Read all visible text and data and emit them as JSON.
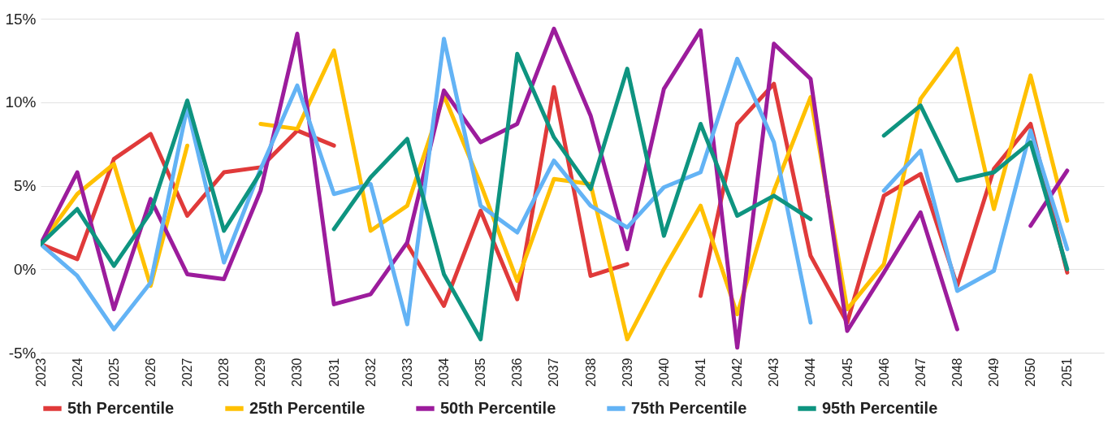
{
  "chart_data": {
    "type": "line",
    "categories": [
      "2023",
      "2024",
      "2025",
      "2026",
      "2027",
      "2028",
      "2029",
      "2030",
      "2031",
      "2032",
      "2033",
      "2034",
      "2035",
      "2036",
      "2037",
      "2038",
      "2039",
      "2040",
      "2041",
      "2042",
      "2043",
      "2044",
      "2045",
      "2046",
      "2047",
      "2048",
      "2049",
      "2050",
      "2051"
    ],
    "series": [
      {
        "name": "5th Percentile",
        "color": "#e03a3a",
        "values": [
          1.5,
          0.6,
          6.6,
          8.1,
          3.2,
          5.8,
          6.1,
          8.3,
          7.4,
          null,
          1.5,
          -2.2,
          3.5,
          -1.8,
          10.9,
          -0.4,
          0.3,
          null,
          -1.6,
          8.7,
          11.1,
          0.8,
          -3.2,
          4.4,
          5.7,
          -1.0,
          6.0,
          8.7,
          -0.2
        ]
      },
      {
        "name": "25th Percentile",
        "color": "#ffc000",
        "values": [
          1.5,
          4.5,
          6.3,
          -1.0,
          7.4,
          null,
          8.7,
          8.4,
          13.1,
          2.3,
          3.8,
          10.4,
          5.1,
          -0.7,
          5.4,
          5.1,
          -4.2,
          0.0,
          3.8,
          -2.7,
          4.7,
          10.3,
          -2.4,
          0.3,
          10.2,
          13.2,
          3.6,
          11.6,
          2.9
        ]
      },
      {
        "name": "50th Percentile",
        "color": "#9c1c9c",
        "values": [
          1.5,
          5.8,
          -2.4,
          4.2,
          -0.3,
          -0.6,
          4.7,
          14.1,
          -2.1,
          -1.5,
          1.6,
          10.7,
          7.6,
          8.7,
          14.4,
          9.2,
          1.2,
          10.8,
          14.3,
          -4.7,
          13.5,
          11.4,
          -3.7,
          -0.2,
          3.4,
          -3.6,
          null,
          2.6,
          5.9
        ]
      },
      {
        "name": "75th Percentile",
        "color": "#63b3f5",
        "values": [
          1.5,
          -0.4,
          -3.6,
          -0.8,
          9.7,
          0.4,
          6.0,
          11.0,
          4.5,
          5.1,
          -3.3,
          13.8,
          3.8,
          2.2,
          6.5,
          3.8,
          2.5,
          4.9,
          5.8,
          12.6,
          7.6,
          -3.2,
          null,
          4.7,
          7.1,
          -1.3,
          -0.1,
          8.3,
          1.2
        ]
      },
      {
        "name": "95th Percentile",
        "color": "#0e9480",
        "values": [
          1.5,
          3.6,
          0.2,
          3.4,
          10.1,
          2.3,
          5.8,
          null,
          2.4,
          5.5,
          7.8,
          -0.3,
          -4.2,
          12.9,
          7.9,
          4.8,
          12.0,
          2.0,
          8.7,
          3.2,
          4.4,
          3.0,
          null,
          8.0,
          9.8,
          5.3,
          5.8,
          7.6,
          0.0
        ]
      }
    ],
    "ylim": [
      -5,
      15
    ],
    "yticks": [
      {
        "value": -5,
        "label": "-5%"
      },
      {
        "value": 0,
        "label": "0%"
      },
      {
        "value": 5,
        "label": "5%"
      },
      {
        "value": 10,
        "label": "10%"
      },
      {
        "value": 15,
        "label": "15%"
      }
    ],
    "grid": "y",
    "legend": "bottom",
    "marker": "none",
    "line_style": "solid"
  }
}
